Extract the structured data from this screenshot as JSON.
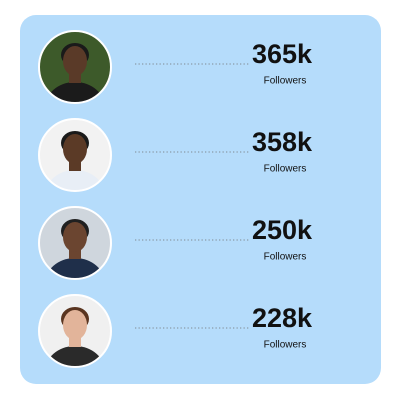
{
  "items": [
    {
      "value": "365k",
      "label": "Followers"
    },
    {
      "value": "358k",
      "label": "Followers"
    },
    {
      "value": "250k",
      "label": "Followers"
    },
    {
      "value": "228k",
      "label": "Followers"
    }
  ]
}
